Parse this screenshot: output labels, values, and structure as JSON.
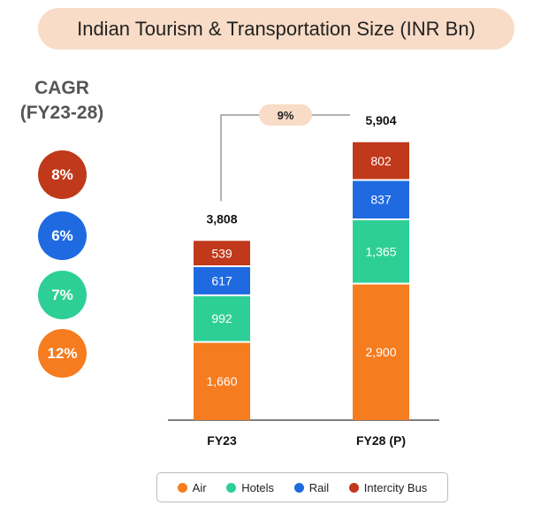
{
  "title": "Indian Tourism & Transportation Size  (INR Bn)",
  "cagr": {
    "title_line1": "CAGR",
    "title_line2": "(FY23-28)",
    "values": [
      {
        "label": "8%",
        "segment": "Intercity Bus",
        "color": "#c0391b"
      },
      {
        "label": "6%",
        "segment": "Rail",
        "color": "#1f6ae0"
      },
      {
        "label": "7%",
        "segment": "Hotels",
        "color": "#2ecf96"
      },
      {
        "label": "12%",
        "segment": "Air",
        "color": "#f57c1f"
      }
    ]
  },
  "chart_data": {
    "type": "bar",
    "stacked": true,
    "categories": [
      "FY23",
      "FY28 (P)"
    ],
    "series": [
      {
        "name": "Air",
        "color": "#f57c1f",
        "values": [
          1660,
          2900
        ],
        "labels": [
          "1,660",
          "2,900"
        ]
      },
      {
        "name": "Hotels",
        "color": "#2ecf96",
        "values": [
          992,
          1365
        ],
        "labels": [
          "992",
          "1,365"
        ]
      },
      {
        "name": "Rail",
        "color": "#1f6ae0",
        "values": [
          617,
          837
        ],
        "labels": [
          "617",
          "837"
        ]
      },
      {
        "name": "Intercity Bus",
        "color": "#c0391b",
        "values": [
          539,
          802
        ],
        "labels": [
          "539",
          "802"
        ]
      }
    ],
    "totals": [
      3808,
      5904
    ],
    "total_labels": [
      "3,808",
      "5,904"
    ],
    "growth_label": "9%",
    "ylim": [
      0,
      6200
    ],
    "legend_position": "bottom",
    "grid": false
  }
}
